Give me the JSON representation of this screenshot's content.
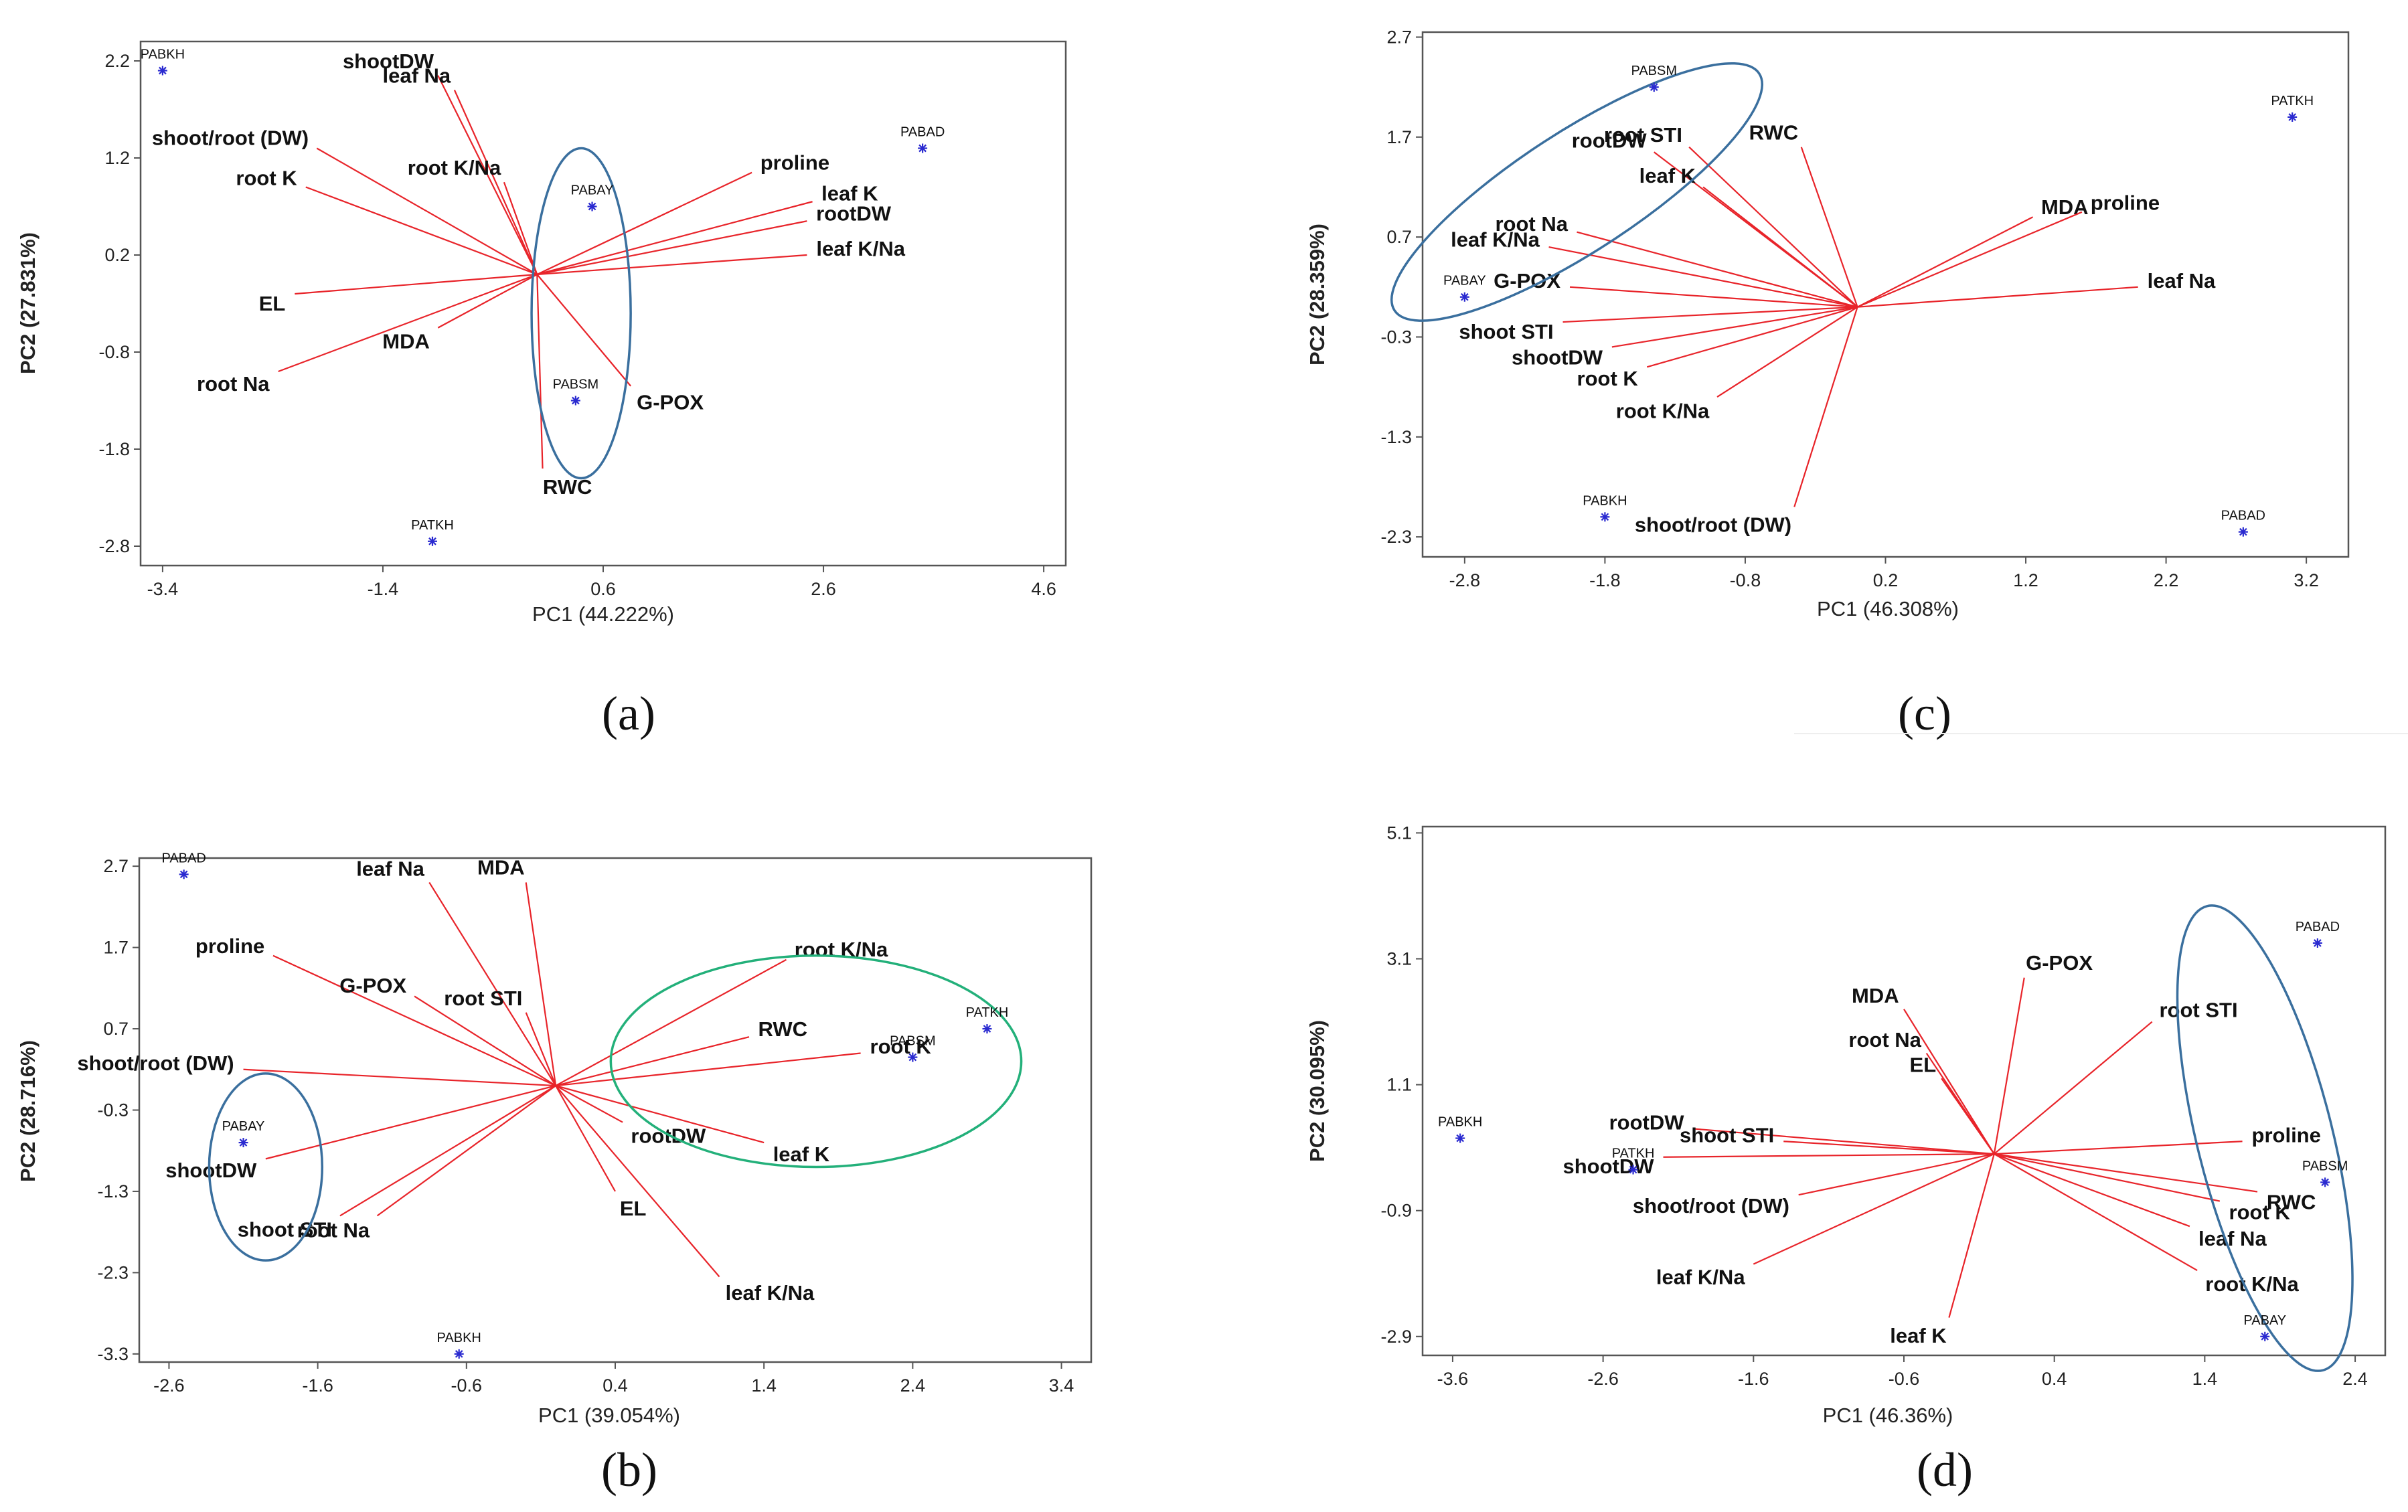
{
  "chart_data": [
    {
      "panel": "a",
      "type": "scatter",
      "subtype": "PCA biplot",
      "caption": "(a)",
      "xlabel": "PC1 (44.222%)",
      "ylabel": "PC2 (27.831%)",
      "xlim": [
        -3.6,
        4.8
      ],
      "ylim": [
        -3.0,
        2.4
      ],
      "xticks": [
        "-3.4",
        "-1.4",
        "0.6",
        "2.6",
        "4.6"
      ],
      "yticks": [
        "2.2",
        "1.2",
        "0.2",
        "-0.8",
        "-1.8",
        "-2.8"
      ],
      "origin": [
        0,
        0
      ],
      "vectors": [
        {
          "label": "shootDW",
          "x": -0.9,
          "y": 2.05
        },
        {
          "label": "leaf Na",
          "x": -0.75,
          "y": 1.9
        },
        {
          "label": "shoot/root (DW)",
          "x": -2.0,
          "y": 1.3
        },
        {
          "label": "root K",
          "x": -2.1,
          "y": 0.9
        },
        {
          "label": "root K/Na",
          "x": -0.3,
          "y": 0.95
        },
        {
          "label": "proline",
          "x": 1.95,
          "y": 1.05
        },
        {
          "label": "leaf K",
          "x": 2.5,
          "y": 0.75
        },
        {
          "label": "rootDW",
          "x": 2.45,
          "y": 0.55
        },
        {
          "label": "leaf K/Na",
          "x": 2.45,
          "y": 0.2
        },
        {
          "label": "EL",
          "x": -2.2,
          "y": -0.2
        },
        {
          "label": "MDA",
          "x": -0.9,
          "y": -0.55
        },
        {
          "label": "root Na",
          "x": -2.35,
          "y": -1.0
        },
        {
          "label": "G-POX",
          "x": 0.85,
          "y": -1.15
        },
        {
          "label": "RWC",
          "x": 0.05,
          "y": -2.0
        }
      ],
      "observations": [
        {
          "label": "PABKH",
          "x": -3.4,
          "y": 2.1
        },
        {
          "label": "PABAD",
          "x": 3.5,
          "y": 1.3
        },
        {
          "label": "PABAY",
          "x": 0.5,
          "y": 0.7
        },
        {
          "label": "PABSM",
          "x": 0.35,
          "y": -1.3
        },
        {
          "label": "PATKH",
          "x": -0.95,
          "y": -2.75
        }
      ],
      "ellipses": [
        {
          "cx": 0.4,
          "cy": -0.4,
          "rx": 0.45,
          "ry": 1.7,
          "rotation_deg": 0,
          "color": "#3a6f9e"
        }
      ]
    },
    {
      "panel": "c",
      "type": "scatter",
      "subtype": "PCA biplot",
      "caption": "(c)",
      "xlabel": "PC1 (46.308%)",
      "ylabel": "PC2 (28.359%)",
      "xlim": [
        -3.1,
        3.5
      ],
      "ylim": [
        -2.5,
        2.75
      ],
      "xticks": [
        "-2.8",
        "-1.8",
        "-0.8",
        "0.2",
        "1.2",
        "2.2",
        "3.2"
      ],
      "yticks": [
        "2.7",
        "1.7",
        "0.7",
        "-0.3",
        "-1.3",
        "-2.3"
      ],
      "origin": [
        0,
        0
      ],
      "vectors": [
        {
          "label": "rootDW",
          "x": -1.45,
          "y": 1.55
        },
        {
          "label": "root STI",
          "x": -1.2,
          "y": 1.6
        },
        {
          "label": "leaf K",
          "x": -1.1,
          "y": 1.2
        },
        {
          "label": "RWC",
          "x": -0.4,
          "y": 1.6
        },
        {
          "label": "MDA",
          "x": 1.25,
          "y": 0.9
        },
        {
          "label": "proline",
          "x": 1.6,
          "y": 0.95
        },
        {
          "label": "leaf Na",
          "x": 2.0,
          "y": 0.2
        },
        {
          "label": "root Na",
          "x": -2.0,
          "y": 0.75
        },
        {
          "label": "leaf K/Na",
          "x": -2.2,
          "y": 0.6
        },
        {
          "label": "G-POX",
          "x": -2.05,
          "y": 0.2
        },
        {
          "label": "shoot STI",
          "x": -2.1,
          "y": -0.15
        },
        {
          "label": "shootDW",
          "x": -1.75,
          "y": -0.4
        },
        {
          "label": "root K",
          "x": -1.5,
          "y": -0.6
        },
        {
          "label": "root K/Na",
          "x": -1.0,
          "y": -0.9
        },
        {
          "label": "shoot/root (DW)",
          "x": -0.45,
          "y": -2.0
        }
      ],
      "observations": [
        {
          "label": "PABSM",
          "x": -1.45,
          "y": 2.2
        },
        {
          "label": "PATKH",
          "x": 3.1,
          "y": 1.9
        },
        {
          "label": "PABAY",
          "x": -2.8,
          "y": 0.1
        },
        {
          "label": "PABKH",
          "x": -1.8,
          "y": -2.1
        },
        {
          "label": "PABAD",
          "x": 2.75,
          "y": -2.25
        }
      ],
      "ellipses": [
        {
          "cx": -2.0,
          "cy": 1.15,
          "rx": 1.55,
          "ry": 0.6,
          "rotation_deg": -33,
          "color": "#3a6f9e"
        }
      ]
    },
    {
      "panel": "b",
      "type": "scatter",
      "subtype": "PCA biplot",
      "caption": "(b)",
      "xlabel": "PC1 (39.054%)",
      "ylabel": "PC2 (28.716%)",
      "xlim": [
        -2.8,
        3.6
      ],
      "ylim": [
        -3.4,
        2.8
      ],
      "xticks": [
        "-2.6",
        "-1.6",
        "-0.6",
        "0.4",
        "1.4",
        "2.4",
        "3.4"
      ],
      "yticks": [
        "2.7",
        "1.7",
        "0.7",
        "-0.3",
        "-1.3",
        "-2.3",
        "-3.3"
      ],
      "origin": [
        0,
        0
      ],
      "vectors": [
        {
          "label": "leaf Na",
          "x": -0.85,
          "y": 2.5
        },
        {
          "label": "MDA",
          "x": -0.2,
          "y": 2.5
        },
        {
          "label": "proline",
          "x": -1.9,
          "y": 1.6
        },
        {
          "label": "G-POX",
          "x": -0.95,
          "y": 1.1
        },
        {
          "label": "root STI",
          "x": -0.2,
          "y": 0.9
        },
        {
          "label": "shoot/root (DW)",
          "x": -2.1,
          "y": 0.2
        },
        {
          "label": "shootDW",
          "x": -1.95,
          "y": -0.9
        },
        {
          "label": "shoot STI",
          "x": -1.45,
          "y": -1.6
        },
        {
          "label": "root Na",
          "x": -1.2,
          "y": -1.6
        },
        {
          "label": "root K/Na",
          "x": 1.55,
          "y": 1.55
        },
        {
          "label": "RWC",
          "x": 1.3,
          "y": 0.6
        },
        {
          "label": "root K",
          "x": 2.05,
          "y": 0.4
        },
        {
          "label": "rootDW",
          "x": 0.45,
          "y": -0.45
        },
        {
          "label": "leaf K",
          "x": 1.4,
          "y": -0.7
        },
        {
          "label": "EL",
          "x": 0.4,
          "y": -1.3
        },
        {
          "label": "leaf K/Na",
          "x": 1.1,
          "y": -2.35
        }
      ],
      "observations": [
        {
          "label": "PABAD",
          "x": -2.5,
          "y": 2.6
        },
        {
          "label": "PATKH",
          "x": 2.9,
          "y": 0.7
        },
        {
          "label": "PABSM",
          "x": 2.4,
          "y": 0.35
        },
        {
          "label": "PABAY",
          "x": -2.1,
          "y": -0.7
        },
        {
          "label": "PABKH",
          "x": -0.65,
          "y": -3.3
        }
      ],
      "ellipses": [
        {
          "cx": -1.95,
          "cy": -1.0,
          "rx": 0.38,
          "ry": 1.15,
          "rotation_deg": 0,
          "color": "#3a6f9e"
        },
        {
          "cx": 1.75,
          "cy": 0.3,
          "rx": 1.38,
          "ry": 1.3,
          "rotation_deg": 0,
          "color": "#23b07a"
        }
      ]
    },
    {
      "panel": "d",
      "type": "scatter",
      "subtype": "PCA biplot",
      "caption": "(d)",
      "xlabel": "PC1 (46.36%)",
      "ylabel": "PC2 (30.095%)",
      "xlim": [
        -3.8,
        2.6
      ],
      "ylim": [
        -3.2,
        5.2
      ],
      "xticks": [
        "-3.6",
        "-2.6",
        "-1.6",
        "-0.6",
        "0.4",
        "1.4",
        "2.4"
      ],
      "yticks": [
        "5.1",
        "3.1",
        "1.1",
        "-0.9",
        "-2.9"
      ],
      "origin": [
        0,
        0
      ],
      "vectors": [
        {
          "label": "MDA",
          "x": -0.6,
          "y": 2.3
        },
        {
          "label": "G-POX",
          "x": 0.2,
          "y": 2.8
        },
        {
          "label": "root Na",
          "x": -0.45,
          "y": 1.6
        },
        {
          "label": "EL",
          "x": -0.35,
          "y": 1.2
        },
        {
          "label": "root STI",
          "x": 1.05,
          "y": 2.1
        },
        {
          "label": "rootDW",
          "x": -2.0,
          "y": 0.4
        },
        {
          "label": "shoot STI",
          "x": -1.4,
          "y": 0.2
        },
        {
          "label": "shootDW",
          "x": -2.2,
          "y": -0.05
        },
        {
          "label": "shoot/root (DW)",
          "x": -1.3,
          "y": -0.65
        },
        {
          "label": "leaf K/Na",
          "x": -1.6,
          "y": -1.75
        },
        {
          "label": "leaf K",
          "x": -0.3,
          "y": -2.6
        },
        {
          "label": "proline",
          "x": 1.65,
          "y": 0.2
        },
        {
          "label": "RWC",
          "x": 1.75,
          "y": -0.6
        },
        {
          "label": "root K",
          "x": 1.5,
          "y": -0.75
        },
        {
          "label": "leaf Na",
          "x": 1.3,
          "y": -1.15
        },
        {
          "label": "root K/Na",
          "x": 1.35,
          "y": -1.85
        }
      ],
      "observations": [
        {
          "label": "PABAD",
          "x": 2.15,
          "y": 3.35
        },
        {
          "label": "PABKH",
          "x": -3.55,
          "y": 0.25
        },
        {
          "label": "PATKH",
          "x": -2.4,
          "y": -0.25
        },
        {
          "label": "PABSM",
          "x": 2.2,
          "y": -0.45
        },
        {
          "label": "PABAY",
          "x": 1.8,
          "y": -2.9
        }
      ],
      "ellipses": [
        {
          "cx": 1.8,
          "cy": 0.25,
          "rx": 0.45,
          "ry": 3.8,
          "rotation_deg": -14,
          "color": "#3a6f9e"
        }
      ]
    }
  ]
}
